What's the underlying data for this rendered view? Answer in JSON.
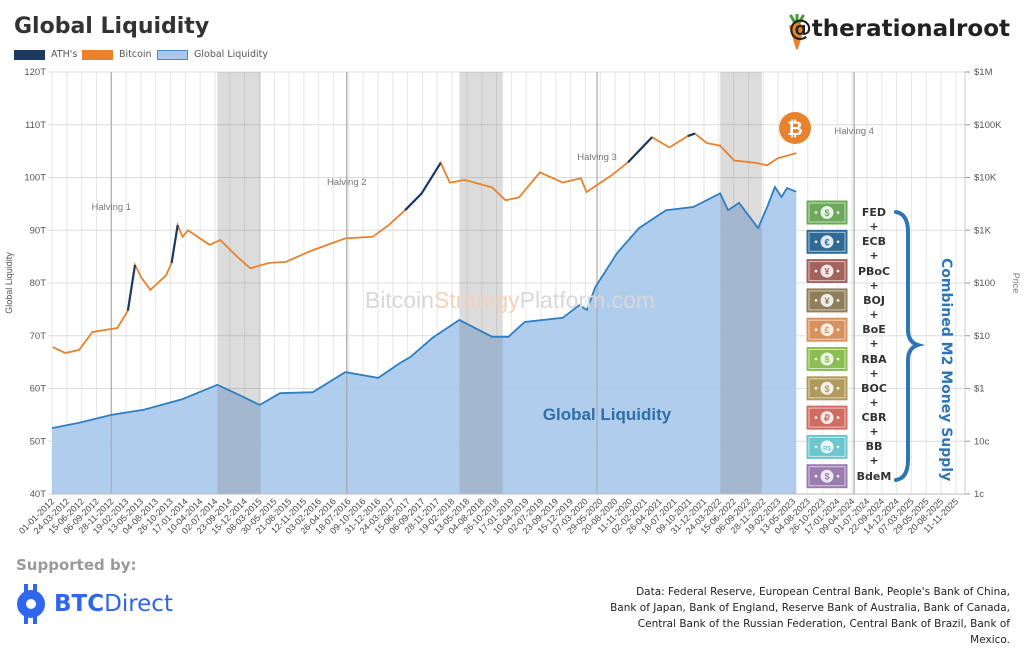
{
  "header": {
    "title": "Global Liquidity",
    "handle": "@therationalroot"
  },
  "legend": [
    {
      "label": "ATH's",
      "color": "#1b3a63"
    },
    {
      "label": "Bitcoin",
      "color": "#e8822e"
    },
    {
      "label": "Global Liquidity",
      "color": "#a9c8ec"
    }
  ],
  "watermark": {
    "part1": "Bitcoin",
    "part2": "Strategy",
    "part3": "Platform.com"
  },
  "series_label": "Global Liquidity",
  "m2": {
    "title": "Combined M2 Money Supply",
    "banks": [
      {
        "name": "FED",
        "symbol": "$",
        "color": "#6ea85a"
      },
      {
        "name": "ECB",
        "symbol": "€",
        "color": "#2e6a96"
      },
      {
        "name": "PBoC",
        "symbol": "¥",
        "color": "#a4625c"
      },
      {
        "name": "BOJ",
        "symbol": "¥",
        "color": "#8e7e5a"
      },
      {
        "name": "BoE",
        "symbol": "£",
        "color": "#d8925e"
      },
      {
        "name": "RBA",
        "symbol": "$",
        "color": "#8cbe54"
      },
      {
        "name": "BOC",
        "symbol": "$",
        "color": "#b09a5c"
      },
      {
        "name": "CBR",
        "symbol": "₽",
        "color": "#d06c62"
      },
      {
        "name": "BB",
        "symbol": "R$",
        "color": "#6cc6cc"
      },
      {
        "name": "BdeM",
        "symbol": "$",
        "color": "#9a7cb0"
      }
    ],
    "plus": "+"
  },
  "footer": {
    "supported_by": "Supported by:",
    "sponsor_bold": "BTC",
    "sponsor_rest": "Direct",
    "data_source": "Data: Federal Reserve, European Central Bank, People's Bank of China, Bank of Japan, Bank of England, Reserve Bank of Australia, Bank of Canada, Central Bank of the Russian Federation, Central Bank of Brazil, Bank of Mexico."
  },
  "chart_data": {
    "type": "line",
    "ylabel_left": "Global Liquidity",
    "ylabel_right": "Price",
    "xlim": [
      "2012-01-01",
      "2026-01-01"
    ],
    "ylim_left": [
      40,
      120
    ],
    "ylim_right": [
      0.01,
      1000000
    ],
    "right_scale": "log",
    "grid": true,
    "legend_position": "top-left",
    "y_ticks_left": [
      "40T",
      "50T",
      "60T",
      "70T",
      "80T",
      "90T",
      "100T",
      "110T",
      "120T"
    ],
    "y_ticks_left_values": [
      40,
      50,
      60,
      70,
      80,
      90,
      100,
      110,
      120
    ],
    "y_ticks_right": [
      "1c",
      "10c",
      "$1",
      "$10",
      "$100",
      "$1K",
      "$10K",
      "$100K",
      "$1M"
    ],
    "y_ticks_right_values": [
      0.01,
      0.1,
      1,
      10,
      100,
      1000,
      10000,
      100000,
      1000000
    ],
    "x_ticks": [
      "01-01-2012",
      "24-03-2012",
      "15-06-2012",
      "06-09-2012",
      "28-11-2012",
      "19-02-2013",
      "13-05-2013",
      "04-08-2013",
      "26-10-2013",
      "17-01-2014",
      "10-04-2014",
      "02-07-2014",
      "23-09-2014",
      "15-12-2014",
      "08-03-2015",
      "30-05-2015",
      "21-08-2015",
      "12-11-2015",
      "03-02-2016",
      "26-04-2016",
      "18-07-2016",
      "09-10-2016",
      "31-12-2016",
      "24-03-2017",
      "15-06-2017",
      "06-09-2017",
      "28-11-2017",
      "19-02-2018",
      "13-05-2018",
      "04-08-2018",
      "26-10-2018",
      "17-01-2019",
      "10-04-2019",
      "02-07-2019",
      "23-09-2019",
      "15-12-2019",
      "07-03-2020",
      "29-05-2020",
      "20-08-2020",
      "11-11-2020",
      "02-02-2021",
      "26-04-2021",
      "18-07-2021",
      "09-10-2021",
      "31-12-2021",
      "24-03-2022",
      "15-06-2022",
      "06-09-2022",
      "28-11-2022",
      "19-02-2023",
      "13-05-2023",
      "04-08-2023",
      "26-10-2023",
      "17-01-2024",
      "09-04-2024",
      "01-07-2024",
      "22-09-2024",
      "14-12-2024",
      "07-03-2025",
      "29-05-2025",
      "20-08-2025",
      "11-11-2025"
    ],
    "halvings": [
      {
        "label": "Halving 1",
        "date": "2012-11-28"
      },
      {
        "label": "Halving 2",
        "date": "2016-07-09"
      },
      {
        "label": "Halving 3",
        "date": "2020-05-11"
      },
      {
        "label": "Halving 4",
        "date": "2024-04-20"
      }
    ],
    "bear_periods": [
      [
        "2014-07-15",
        "2015-03-15"
      ],
      [
        "2018-04-01",
        "2018-11-30"
      ],
      [
        "2022-04-01",
        "2022-11-20"
      ]
    ],
    "ath_periods": [
      [
        "2013-03-01",
        "2013-04-10"
      ],
      [
        "2013-11-01",
        "2013-12-05"
      ],
      [
        "2017-06-01",
        "2017-12-17"
      ],
      [
        "2020-11-01",
        "2021-03-15"
      ],
      [
        "2021-10-01",
        "2021-11-10"
      ]
    ],
    "series": [
      {
        "name": "Global Liquidity",
        "unit": "T",
        "axis": "left",
        "color": "#2f7fc0",
        "fill": "#a9c8ec",
        "points": [
          [
            "2012-01-01",
            52.5
          ],
          [
            "2012-06-01",
            53.5
          ],
          [
            "2012-11-28",
            55
          ],
          [
            "2013-06-01",
            56
          ],
          [
            "2014-01-01",
            58
          ],
          [
            "2014-07-15",
            60.7
          ],
          [
            "2014-11-01",
            59
          ],
          [
            "2015-03-10",
            56.9
          ],
          [
            "2015-07-01",
            59.1
          ],
          [
            "2016-01-01",
            59.3
          ],
          [
            "2016-07-01",
            63.1
          ],
          [
            "2017-01-01",
            62
          ],
          [
            "2017-05-01",
            64.8
          ],
          [
            "2017-07-01",
            66
          ],
          [
            "2017-11-01",
            69.6
          ],
          [
            "2018-04-01",
            73
          ],
          [
            "2018-10-01",
            69.8
          ],
          [
            "2019-01-01",
            69.8
          ],
          [
            "2019-04-01",
            72.6
          ],
          [
            "2019-11-01",
            73.4
          ],
          [
            "2020-02-01",
            75.8
          ],
          [
            "2020-03-15",
            74.9
          ],
          [
            "2020-05-01",
            79.2
          ],
          [
            "2020-09-01",
            85.7
          ],
          [
            "2021-01-01",
            90.4
          ],
          [
            "2021-06-01",
            93.8
          ],
          [
            "2021-11-01",
            94.4
          ],
          [
            "2022-03-31",
            97
          ],
          [
            "2022-05-15",
            93.8
          ],
          [
            "2022-07-15",
            95.2
          ],
          [
            "2022-10-30",
            90.4
          ],
          [
            "2022-12-20",
            94.4
          ],
          [
            "2023-02-01",
            98.2
          ],
          [
            "2023-03-10",
            96.3
          ],
          [
            "2023-04-10",
            98
          ],
          [
            "2023-06-01",
            97.3
          ]
        ]
      },
      {
        "name": "Bitcoin",
        "unit": "USD",
        "axis": "right",
        "color": "#e8822e",
        "ath_color": "#1b3a63",
        "points": [
          [
            "2012-01-05",
            6.1
          ],
          [
            "2012-03-15",
            4.7
          ],
          [
            "2012-06-01",
            5.4
          ],
          [
            "2012-08-15",
            11.8
          ],
          [
            "2013-01-01",
            14
          ],
          [
            "2013-03-01",
            30
          ],
          [
            "2013-04-10",
            220
          ],
          [
            "2013-05-15",
            127
          ],
          [
            "2013-07-05",
            74
          ],
          [
            "2013-10-01",
            140
          ],
          [
            "2013-11-01",
            240
          ],
          [
            "2013-12-05",
            1250
          ],
          [
            "2014-01-01",
            750
          ],
          [
            "2014-02-01",
            1000
          ],
          [
            "2014-06-01",
            530
          ],
          [
            "2014-08-01",
            650
          ],
          [
            "2014-11-01",
            320
          ],
          [
            "2015-01-15",
            190
          ],
          [
            "2015-05-01",
            240
          ],
          [
            "2015-08-01",
            250
          ],
          [
            "2016-01-01",
            420
          ],
          [
            "2016-07-01",
            700
          ],
          [
            "2016-12-01",
            750
          ],
          [
            "2017-03-01",
            1250
          ],
          [
            "2017-06-01",
            2400
          ],
          [
            "2017-09-01",
            5000
          ],
          [
            "2017-12-17",
            19000
          ],
          [
            "2018-02-06",
            8000
          ],
          [
            "2018-05-01",
            9000
          ],
          [
            "2018-10-01",
            6500
          ],
          [
            "2018-12-15",
            3700
          ],
          [
            "2019-03-01",
            4200
          ],
          [
            "2019-06-26",
            12500
          ],
          [
            "2019-11-01",
            8000
          ],
          [
            "2020-02-10",
            9700
          ],
          [
            "2020-03-13",
            5300
          ],
          [
            "2020-08-01",
            11000
          ],
          [
            "2020-11-01",
            19500
          ],
          [
            "2021-03-15",
            58000
          ],
          [
            "2021-06-20",
            37000
          ],
          [
            "2021-10-01",
            61000
          ],
          [
            "2021-11-10",
            68000
          ],
          [
            "2022-01-15",
            45000
          ],
          [
            "2022-04-01",
            40000
          ],
          [
            "2022-06-18",
            21000
          ],
          [
            "2022-10-15",
            19000
          ],
          [
            "2022-12-20",
            17000
          ],
          [
            "2023-02-15",
            23000
          ],
          [
            "2023-06-01",
            29000
          ]
        ]
      }
    ]
  }
}
